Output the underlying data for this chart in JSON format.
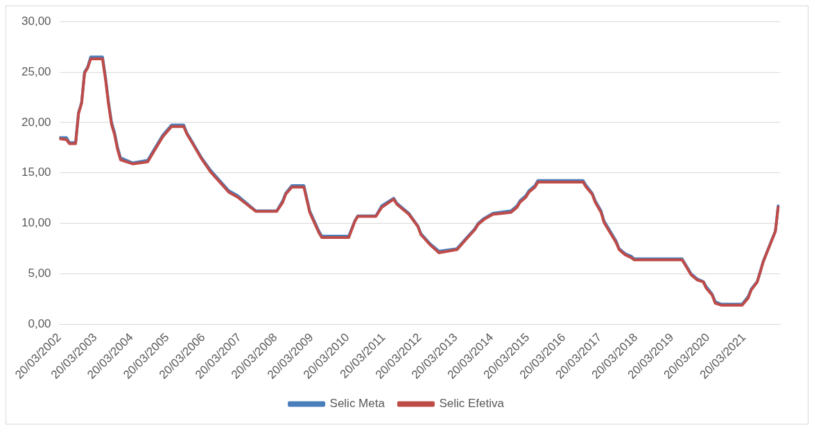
{
  "chart_data": {
    "type": "line",
    "x": [
      "2002-03-20",
      "2002-06",
      "2002-07",
      "2002-09",
      "2002-10",
      "2002-11",
      "2002-12",
      "2003-01",
      "2003-02",
      "2003-06",
      "2003-07",
      "2003-08",
      "2003-09",
      "2003-10",
      "2003-11",
      "2003-12",
      "2004-04",
      "2004-09",
      "2004-10",
      "2004-12",
      "2005-02",
      "2005-05",
      "2005-09",
      "2005-10",
      "2005-12",
      "2006-03",
      "2006-06",
      "2006-09",
      "2006-12",
      "2007-03",
      "2007-06",
      "2007-09",
      "2008-04",
      "2008-06",
      "2008-07",
      "2008-09",
      "2009-01",
      "2009-03",
      "2009-06",
      "2009-07",
      "2010-04",
      "2010-06",
      "2010-07",
      "2011-01",
      "2011-03",
      "2011-07",
      "2011-08",
      "2011-10",
      "2011-12",
      "2012-03",
      "2012-04",
      "2012-07",
      "2012-10",
      "2013-04",
      "2013-07",
      "2013-10",
      "2013-11",
      "2014-01",
      "2014-04",
      "2014-10",
      "2014-12",
      "2015-01",
      "2015-03",
      "2015-04",
      "2015-06",
      "2015-07",
      "2016-10",
      "2016-11",
      "2017-01",
      "2017-02",
      "2017-04",
      "2017-05",
      "2017-07",
      "2017-09",
      "2017-10",
      "2017-12",
      "2018-02",
      "2018-03",
      "2019-07",
      "2019-09",
      "2019-10",
      "2019-12",
      "2020-02",
      "2020-03",
      "2020-05",
      "2020-06",
      "2020-08",
      "2021-03",
      "2021-05",
      "2021-06",
      "2021-08",
      "2021-09",
      "2021-10",
      "2021-12",
      "2022-02",
      "2022-03"
    ],
    "series": [
      {
        "name": "Selic Meta",
        "color": "#4a7ebb",
        "values": [
          18.5,
          18.5,
          18,
          18,
          21,
          22,
          25,
          25.5,
          26.5,
          26.5,
          24.5,
          22,
          20,
          19,
          17.5,
          16.5,
          16,
          16.25,
          16.75,
          17.75,
          18.75,
          19.75,
          19.75,
          19,
          18,
          16.5,
          15.25,
          14.25,
          13.25,
          12.75,
          12,
          11.25,
          11.25,
          12.25,
          13,
          13.75,
          13.75,
          11.25,
          9.25,
          8.75,
          8.75,
          10.25,
          10.75,
          10.75,
          11.75,
          12.5,
          12,
          11.5,
          11,
          9.75,
          9,
          8,
          7.25,
          7.5,
          8.5,
          9.5,
          10,
          10.5,
          11,
          11.25,
          11.75,
          12.25,
          12.75,
          13.25,
          13.75,
          14.25,
          14.25,
          13.75,
          13,
          12.25,
          11.25,
          10.25,
          9.25,
          8.25,
          7.5,
          7,
          6.75,
          6.5,
          6.5,
          5.5,
          5,
          4.5,
          4.25,
          3.75,
          3,
          2.25,
          2,
          2,
          2.75,
          3.5,
          4.25,
          5.25,
          6.25,
          7.75,
          9.25,
          11.75
        ]
      },
      {
        "name": "Selic Efetiva",
        "color": "#be4b48",
        "values": [
          18.4,
          18.3,
          17.9,
          17.9,
          20.9,
          21.9,
          24.9,
          25.4,
          26.3,
          26.3,
          24.3,
          21.8,
          19.8,
          18.8,
          17.3,
          16.3,
          15.9,
          16.1,
          16.6,
          17.6,
          18.6,
          19.6,
          19.6,
          18.9,
          17.9,
          16.4,
          15.1,
          14.1,
          13.1,
          12.6,
          11.9,
          11.2,
          11.2,
          12.1,
          12.9,
          13.6,
          13.6,
          11.1,
          9.1,
          8.6,
          8.6,
          10.2,
          10.7,
          10.7,
          11.6,
          12.4,
          11.9,
          11.4,
          10.9,
          9.7,
          8.9,
          7.9,
          7.1,
          7.4,
          8.4,
          9.4,
          9.9,
          10.4,
          10.9,
          11.1,
          11.6,
          12.1,
          12.6,
          13.1,
          13.6,
          14.1,
          14.1,
          13.6,
          12.9,
          12.1,
          11.1,
          10.1,
          9.1,
          8.1,
          7.4,
          6.9,
          6.6,
          6.4,
          6.4,
          5.4,
          4.9,
          4.4,
          4.2,
          3.6,
          2.9,
          2.1,
          1.9,
          1.9,
          2.6,
          3.4,
          4.2,
          5.2,
          6.2,
          7.7,
          9.2,
          11.6
        ]
      }
    ],
    "xlim": [
      "2002-03-20",
      "2022-03-20"
    ],
    "xticks": [
      {
        "value": "2002-03-20",
        "label": "20/03/2002"
      },
      {
        "value": "2003-03-20",
        "label": "20/03/2003"
      },
      {
        "value": "2004-03-20",
        "label": "20/03/2004"
      },
      {
        "value": "2005-03-20",
        "label": "20/03/2005"
      },
      {
        "value": "2006-03-20",
        "label": "20/03/2006"
      },
      {
        "value": "2007-03-20",
        "label": "20/03/2007"
      },
      {
        "value": "2008-03-20",
        "label": "20/03/2008"
      },
      {
        "value": "2009-03-20",
        "label": "20/03/2009"
      },
      {
        "value": "2010-03-20",
        "label": "20/03/2010"
      },
      {
        "value": "2011-03-20",
        "label": "20/03/2011"
      },
      {
        "value": "2012-03-20",
        "label": "20/03/2012"
      },
      {
        "value": "2013-03-20",
        "label": "20/03/2013"
      },
      {
        "value": "2014-03-20",
        "label": "20/03/2014"
      },
      {
        "value": "2015-03-20",
        "label": "20/03/2015"
      },
      {
        "value": "2016-03-20",
        "label": "20/03/2016"
      },
      {
        "value": "2017-03-20",
        "label": "20/03/2017"
      },
      {
        "value": "2018-03-20",
        "label": "20/03/2018"
      },
      {
        "value": "2019-03-20",
        "label": "20/03/2019"
      },
      {
        "value": "2020-03-20",
        "label": "20/03/2020"
      },
      {
        "value": "2021-03-20",
        "label": "20/03/2021"
      }
    ],
    "ylim": [
      0,
      30
    ],
    "yticks": [
      {
        "value": 0,
        "label": "0,00"
      },
      {
        "value": 5,
        "label": "5,00"
      },
      {
        "value": 10,
        "label": "10,00"
      },
      {
        "value": 15,
        "label": "15,00"
      },
      {
        "value": 20,
        "label": "20,00"
      },
      {
        "value": 25,
        "label": "25,00"
      },
      {
        "value": 30,
        "label": "30,00"
      }
    ],
    "grid": "y",
    "legend": "bottom",
    "marker": "none",
    "line_style": "solid"
  }
}
